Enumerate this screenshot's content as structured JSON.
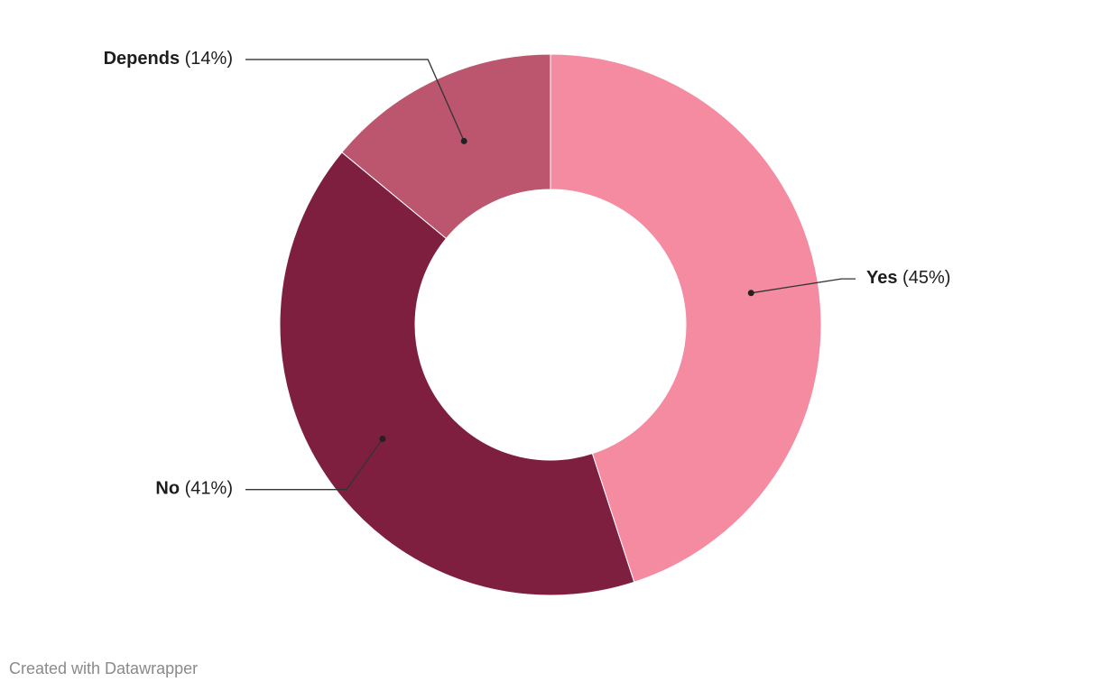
{
  "chart_data": {
    "type": "donut",
    "categories": [
      "Yes",
      "No",
      "Depends"
    ],
    "values": [
      45,
      41,
      14
    ],
    "value_labels": [
      "(45%)",
      "(41%)",
      "(14%)"
    ],
    "colors": [
      "#f48ba1",
      "#7f1f3f",
      "#bc566e"
    ],
    "credit": "Created with Datawrapper"
  }
}
